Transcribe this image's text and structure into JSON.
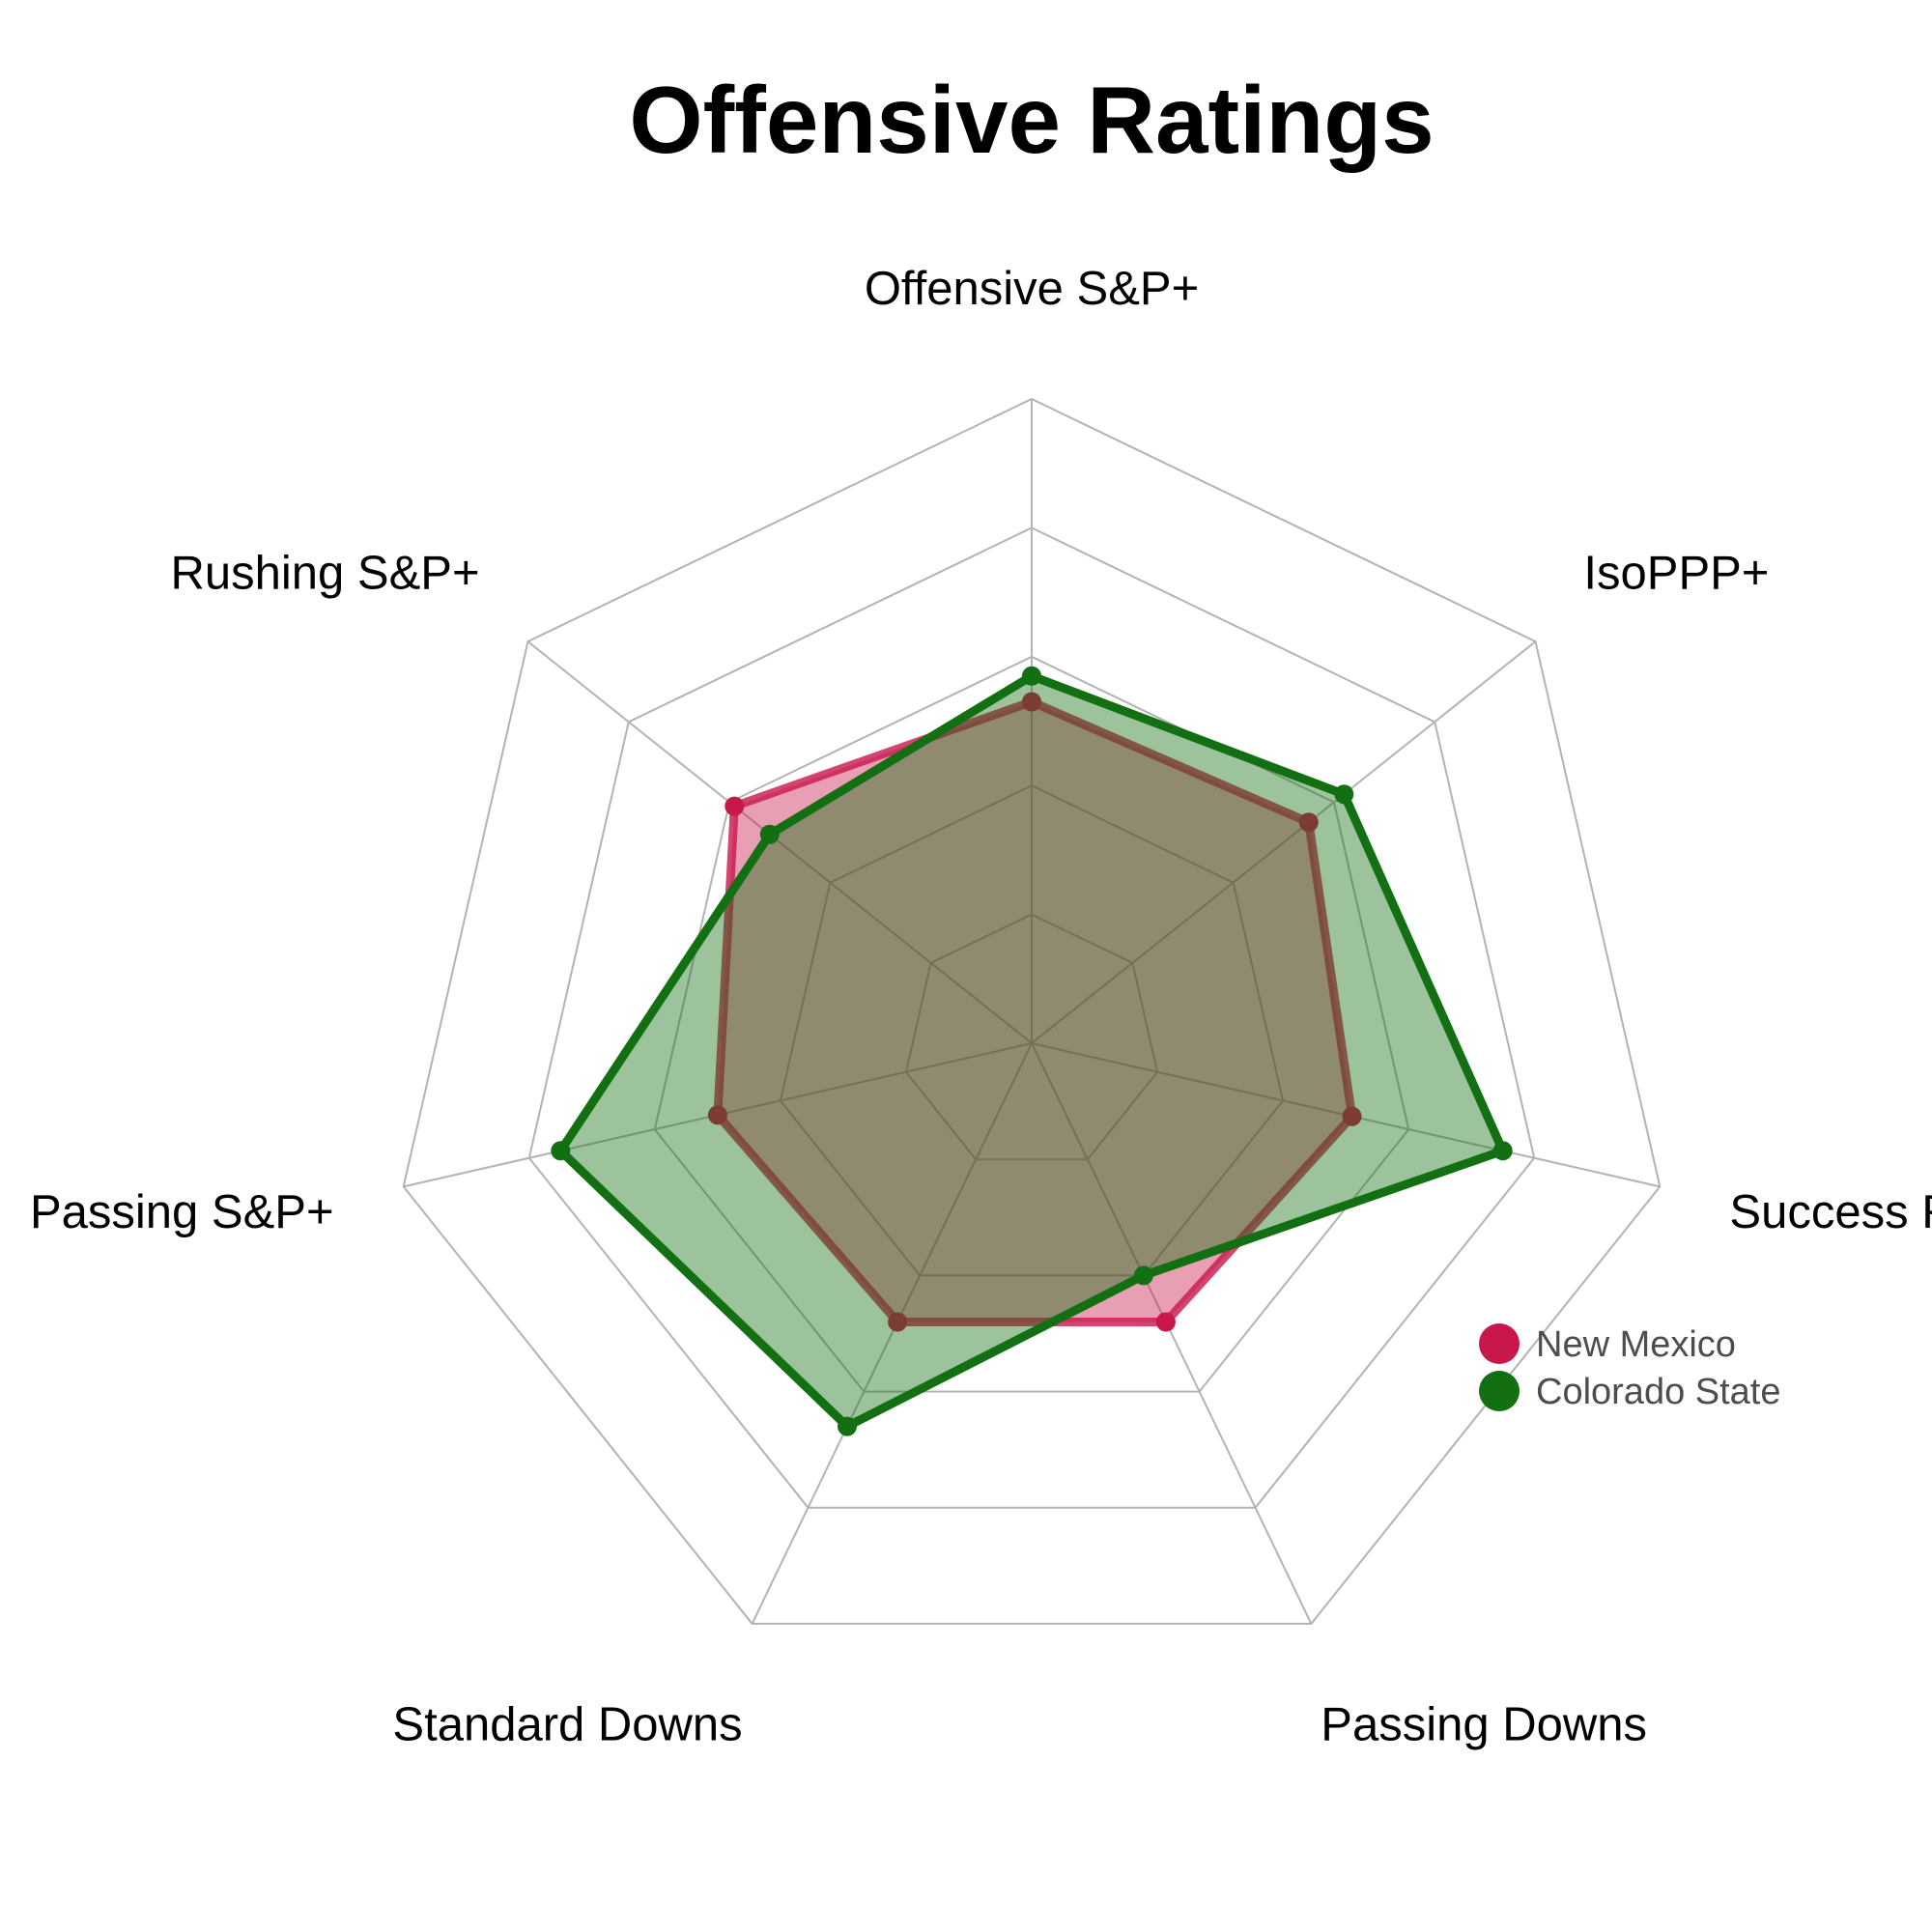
{
  "chart_data": {
    "type": "radar",
    "title": "Offensive Ratings",
    "axes": [
      "Offensive S&P+",
      "IsoPPP+",
      "Success Rate",
      "Passing Downs",
      "Standard Downs",
      "Passing S&P+",
      "Rushing S&P+"
    ],
    "rlim": [
      0,
      1
    ],
    "rings": 5,
    "grid": true,
    "legend_position": "bottom-right",
    "series": [
      {
        "name": "New Mexico",
        "color": "#c8174b",
        "values": [
          0.53,
          0.55,
          0.51,
          0.48,
          0.48,
          0.5,
          0.59
        ]
      },
      {
        "name": "Colorado State",
        "color": "#137012",
        "values": [
          0.57,
          0.62,
          0.75,
          0.4,
          0.66,
          0.75,
          0.52
        ]
      }
    ]
  }
}
